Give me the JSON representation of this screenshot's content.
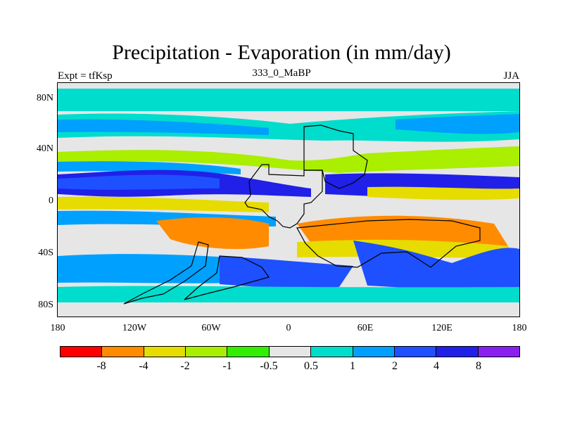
{
  "title": "Precipitation - Evaporation (in mm/day)",
  "subtitle_left": "Expt = tfKsp",
  "subtitle_center": "333_0_MaBP",
  "subtitle_right": "JJA",
  "lat_ticks": [
    "80N",
    "40N",
    "0",
    "40S",
    "80S"
  ],
  "lon_ticks": [
    "180",
    "120W",
    "60W",
    "0",
    "60E",
    "120E",
    "180"
  ],
  "colorbar": {
    "colors": [
      "#ff0000",
      "#ff8c00",
      "#e6dc00",
      "#aaee00",
      "#33ee00",
      "#e6e6e6",
      "#00ddcc",
      "#00a0ff",
      "#1e50ff",
      "#2020e8",
      "#8a20f0"
    ],
    "labels": [
      "-8",
      "-4",
      "-2",
      "-1",
      "-0.5",
      "0.5",
      "1",
      "2",
      "4",
      "8"
    ]
  }
}
